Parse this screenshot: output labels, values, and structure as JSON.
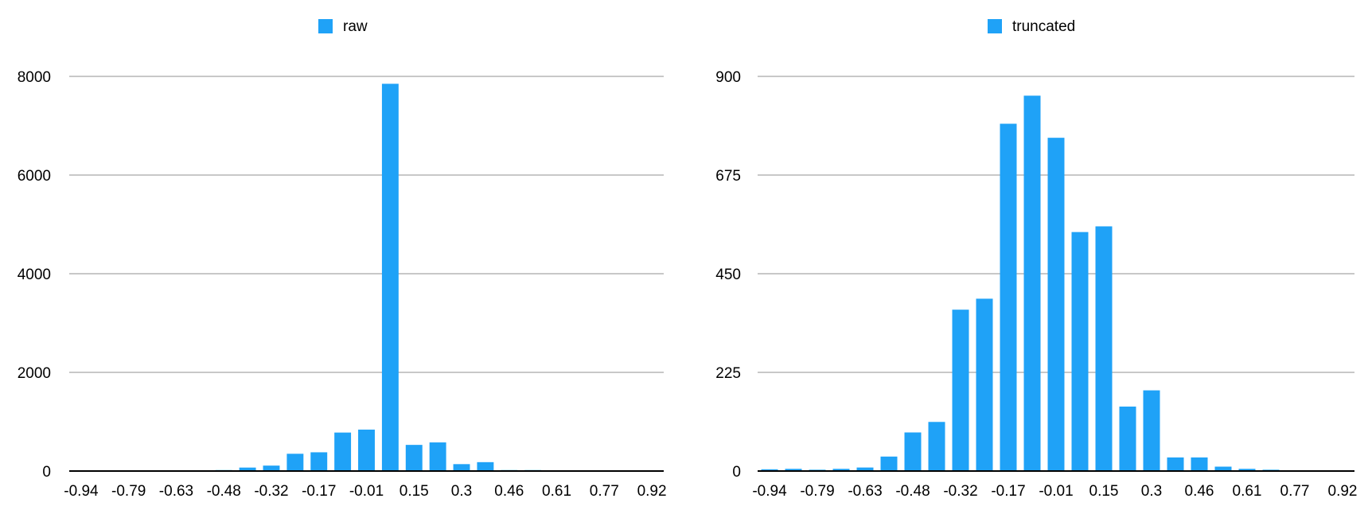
{
  "accent_color": "#1fa2f7",
  "chart_data": [
    {
      "type": "bar",
      "legend_position": "top-center",
      "grid": true,
      "xlabel": "",
      "ylabel": "",
      "ylim": [
        0,
        8000
      ],
      "yticks": [
        "0",
        "2000",
        "4000",
        "6000",
        "8000"
      ],
      "xtick_labels": [
        "-0.94",
        "-0.79",
        "-0.63",
        "-0.48",
        "-0.32",
        "-0.17",
        "-0.01",
        "0.15",
        "0.3",
        "0.46",
        "0.61",
        "0.77",
        "0.92"
      ],
      "series": [
        {
          "name": "raw",
          "color": "#1fa2f7",
          "values": [
            0,
            0,
            0,
            0,
            0,
            0,
            20,
            70,
            110,
            350,
            380,
            780,
            840,
            7850,
            530,
            580,
            140,
            180,
            20,
            20,
            0,
            0,
            0,
            0,
            0
          ]
        }
      ]
    },
    {
      "type": "bar",
      "legend_position": "top-center",
      "grid": true,
      "xlabel": "",
      "ylabel": "",
      "ylim": [
        0,
        900
      ],
      "yticks": [
        "0",
        "225",
        "450",
        "675",
        "900"
      ],
      "xtick_labels": [
        "-0.94",
        "-0.79",
        "-0.63",
        "-0.48",
        "-0.32",
        "-0.17",
        "-0.01",
        "0.15",
        "0.3",
        "0.46",
        "0.61",
        "0.77",
        "0.92"
      ],
      "series": [
        {
          "name": "truncated",
          "color": "#1fa2f7",
          "values": [
            4,
            5,
            3,
            5,
            8,
            33,
            88,
            112,
            368,
            393,
            792,
            856,
            760,
            545,
            558,
            147,
            184,
            31,
            31,
            10,
            5,
            3,
            0,
            0,
            0
          ]
        }
      ]
    }
  ]
}
